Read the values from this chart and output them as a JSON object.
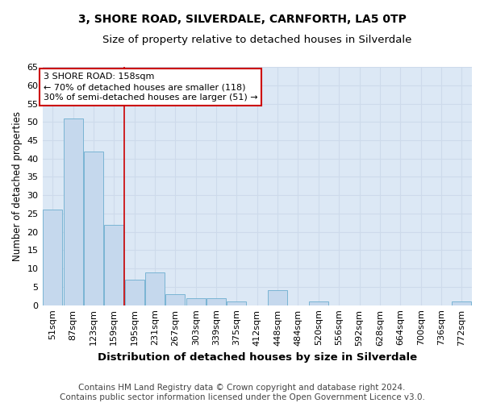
{
  "title1": "3, SHORE ROAD, SILVERDALE, CARNFORTH, LA5 0TP",
  "title2": "Size of property relative to detached houses in Silverdale",
  "xlabel": "Distribution of detached houses by size in Silverdale",
  "ylabel": "Number of detached properties",
  "categories": [
    "51sqm",
    "87sqm",
    "123sqm",
    "159sqm",
    "195sqm",
    "231sqm",
    "267sqm",
    "303sqm",
    "339sqm",
    "375sqm",
    "412sqm",
    "448sqm",
    "484sqm",
    "520sqm",
    "556sqm",
    "592sqm",
    "628sqm",
    "664sqm",
    "700sqm",
    "736sqm",
    "772sqm"
  ],
  "values": [
    26,
    51,
    42,
    22,
    7,
    9,
    3,
    2,
    2,
    1,
    0,
    4,
    0,
    1,
    0,
    0,
    0,
    0,
    0,
    0,
    1
  ],
  "bar_color": "#c5d8ed",
  "bar_edge_color": "#7ab4d4",
  "annotation_text": "3 SHORE ROAD: 158sqm\n← 70% of detached houses are smaller (118)\n30% of semi-detached houses are larger (51) →",
  "annotation_box_color": "#ffffff",
  "annotation_box_edge_color": "#cc0000",
  "red_line_x": 3.5,
  "ylim": [
    0,
    65
  ],
  "yticks": [
    0,
    5,
    10,
    15,
    20,
    25,
    30,
    35,
    40,
    45,
    50,
    55,
    60,
    65
  ],
  "grid_color": "#cddaeb",
  "bg_color": "#dce8f5",
  "footer_line1": "Contains HM Land Registry data © Crown copyright and database right 2024.",
  "footer_line2": "Contains public sector information licensed under the Open Government Licence v3.0.",
  "title1_fontsize": 10,
  "title2_fontsize": 9.5,
  "xlabel_fontsize": 9.5,
  "ylabel_fontsize": 8.5,
  "tick_fontsize": 8,
  "annotation_fontsize": 8,
  "footer_fontsize": 7.5
}
